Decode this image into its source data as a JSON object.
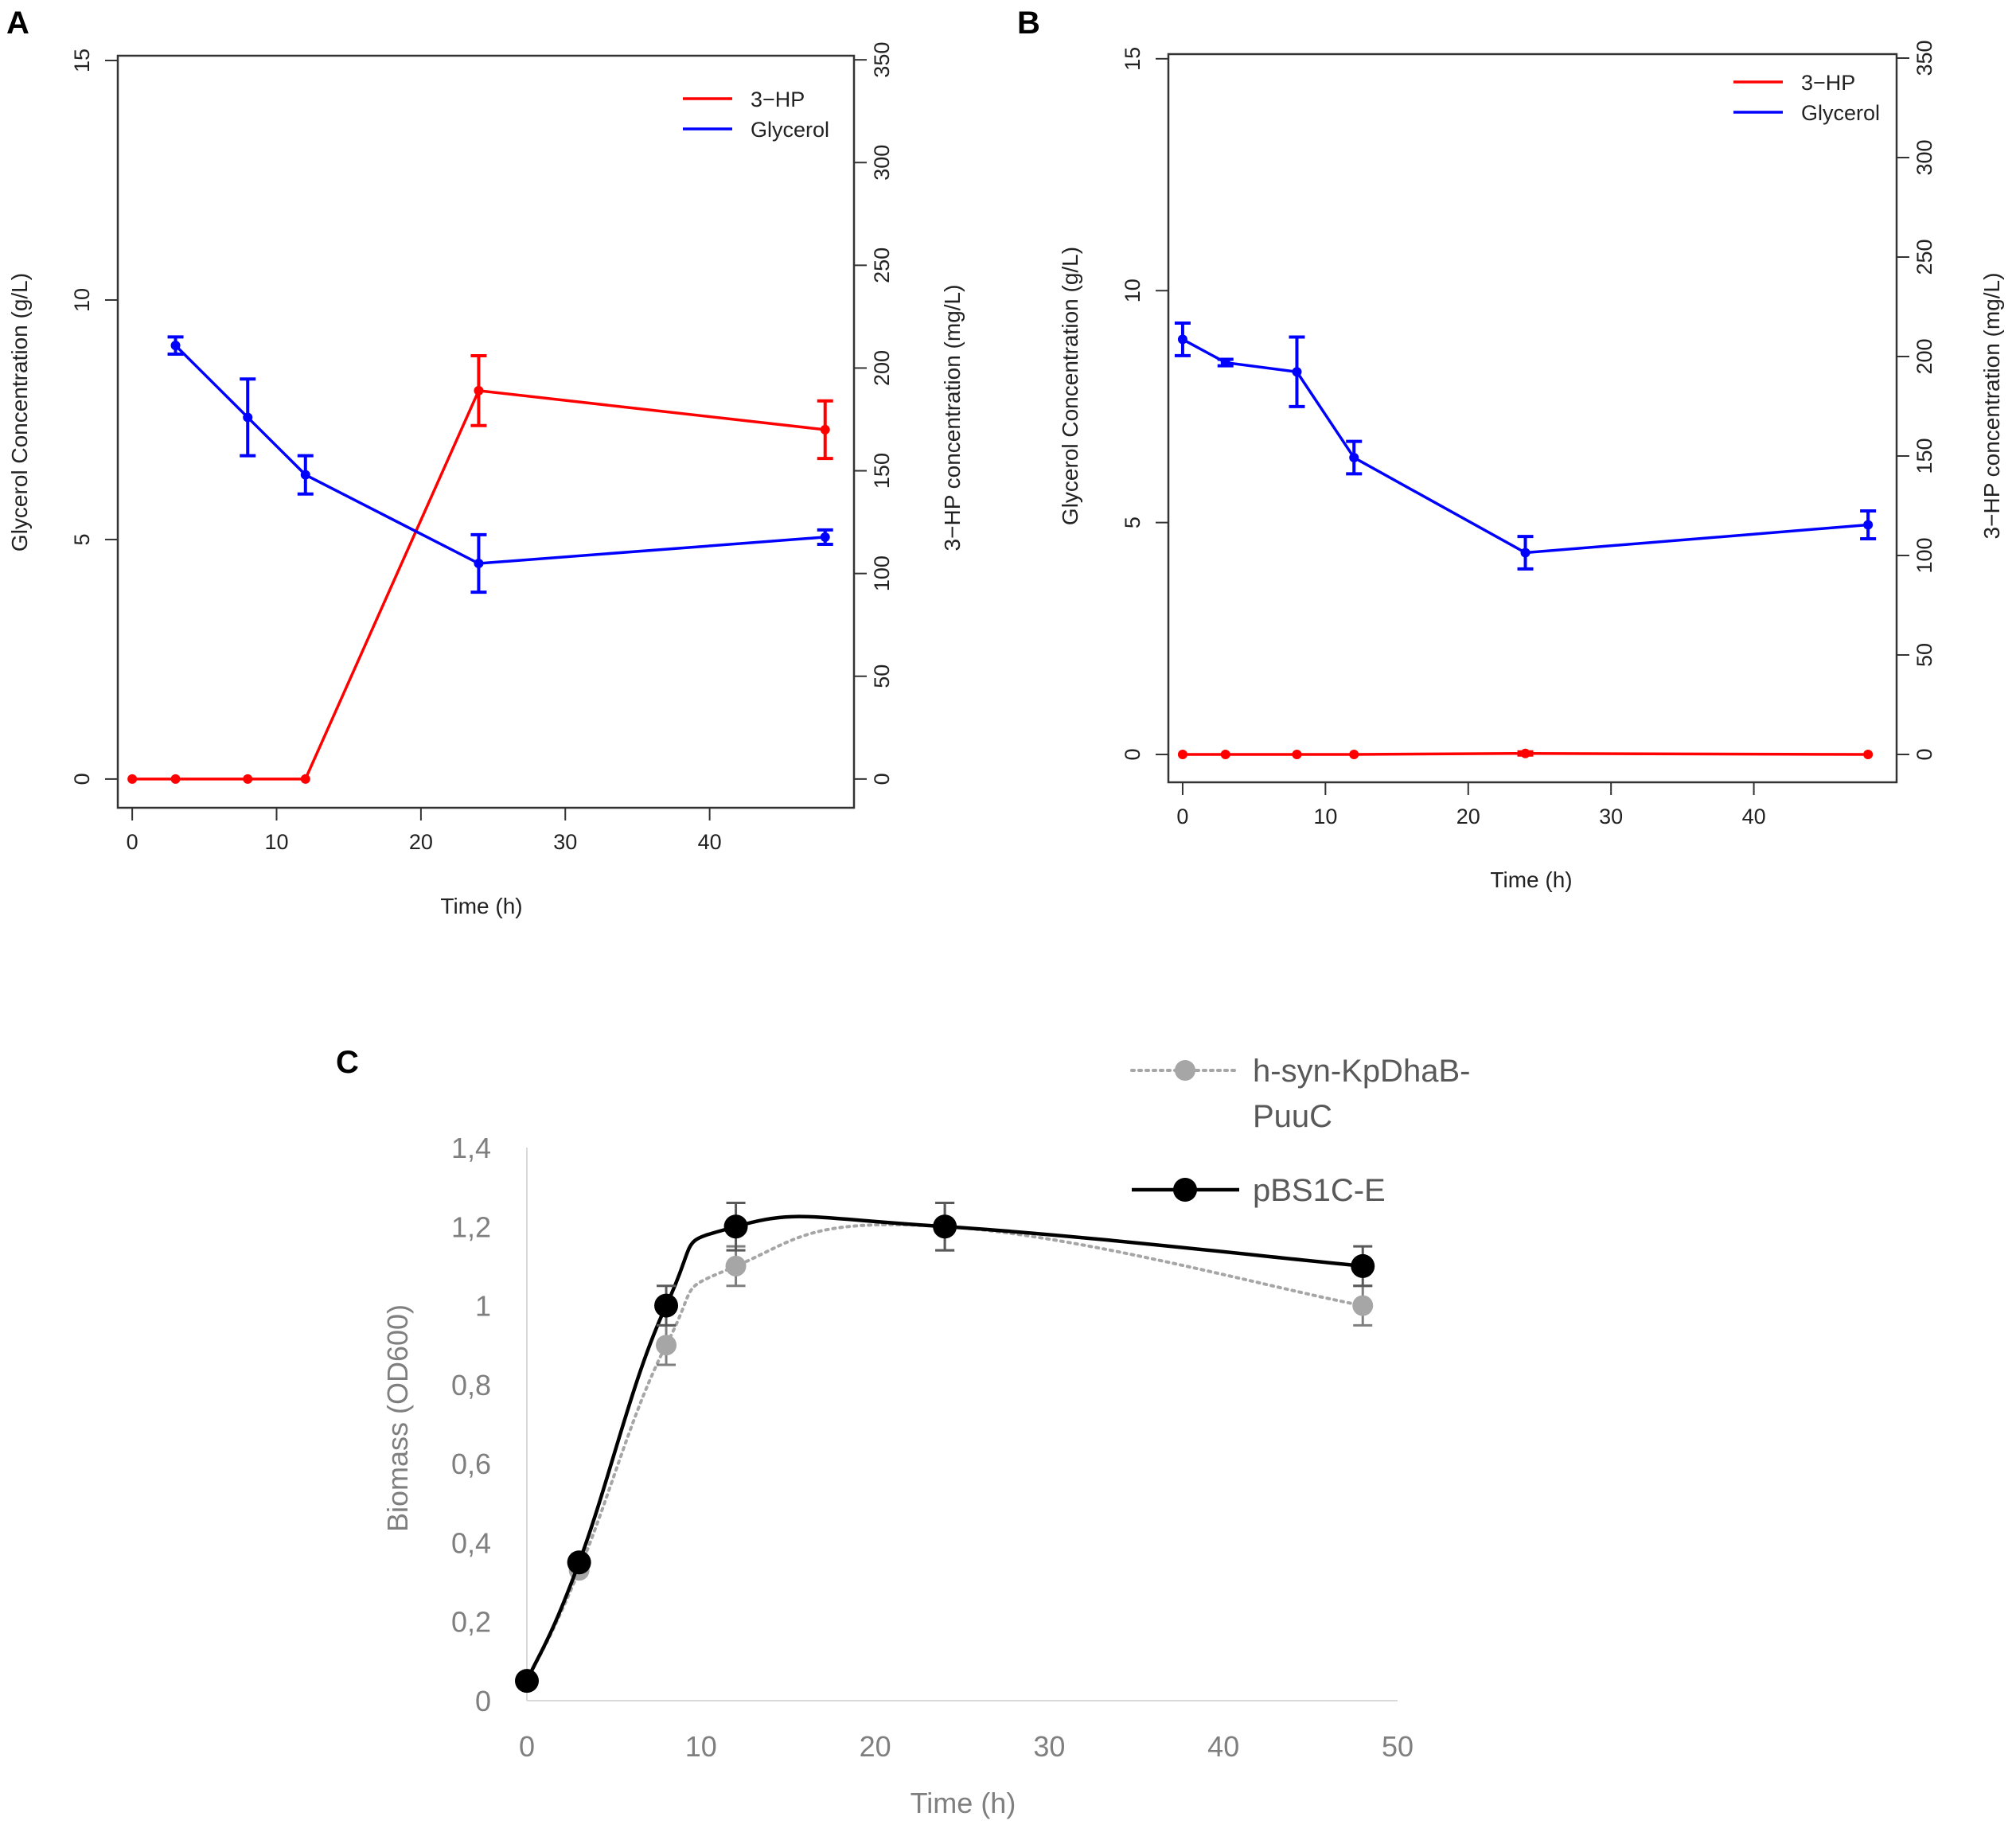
{
  "chart_data": [
    {
      "panel": "A",
      "type": "line",
      "x": [
        0,
        3,
        8,
        12,
        24,
        48
      ],
      "xlabel": "Time (h)",
      "ylabel": "Glycerol Concentration (g/L)",
      "y2label": "3−HP concentration (mg/L)",
      "xlim": [
        -1,
        50
      ],
      "xticks": [
        0,
        10,
        20,
        30,
        40
      ],
      "ylim": [
        -0.6,
        15.1
      ],
      "yticks": [
        0,
        5,
        10,
        15
      ],
      "y2lim": [
        -14,
        352
      ],
      "y2ticks": [
        0,
        50,
        100,
        150,
        200,
        250,
        300,
        350
      ],
      "legend_position": "top-right",
      "series": [
        {
          "name": "3−HP",
          "axis": "right",
          "color": "#ff0000",
          "x": [
            0,
            3,
            8,
            12,
            24,
            48
          ],
          "values": [
            0,
            0,
            0,
            0,
            189,
            170
          ],
          "err": [
            0,
            0,
            0,
            0,
            17,
            14
          ]
        },
        {
          "name": "Glycerol",
          "axis": "left",
          "color": "#0000ff",
          "x": [
            3,
            8,
            12,
            24,
            48
          ],
          "values": [
            9.05,
            7.55,
            6.35,
            4.5,
            5.05
          ],
          "err": [
            0.18,
            0.8,
            0.4,
            0.6,
            0.15
          ]
        }
      ]
    },
    {
      "panel": "B",
      "type": "line",
      "x": [
        0,
        3,
        8,
        12,
        24,
        48
      ],
      "xlabel": "Time (h)",
      "ylabel": "Glycerol Concentration (g/L)",
      "y2label": "3−HP concentration (mg/L)",
      "xlim": [
        -1,
        50
      ],
      "xticks": [
        0,
        10,
        20,
        30,
        40
      ],
      "ylim": [
        -0.6,
        15.1
      ],
      "yticks": [
        0,
        5,
        10,
        15
      ],
      "y2lim": [
        -14,
        352
      ],
      "y2ticks": [
        0,
        50,
        100,
        150,
        200,
        250,
        300,
        350
      ],
      "legend_position": "top-right",
      "series": [
        {
          "name": "3−HP",
          "axis": "right",
          "color": "#ff0000",
          "x": [
            0,
            3,
            8,
            12,
            24,
            48
          ],
          "values": [
            0,
            0,
            0,
            0,
            0.5,
            0
          ],
          "err": [
            0,
            0,
            0,
            0,
            0.8,
            0
          ]
        },
        {
          "name": "Glycerol",
          "axis": "left",
          "color": "#0000ff",
          "x": [
            0,
            3,
            8,
            12,
            24,
            48
          ],
          "values": [
            8.95,
            8.45,
            8.25,
            6.4,
            4.35,
            4.95
          ],
          "err": [
            0.35,
            0.07,
            0.75,
            0.35,
            0.35,
            0.3
          ]
        }
      ]
    },
    {
      "panel": "C",
      "type": "line",
      "xlabel": "Time (h)",
      "ylabel": "Biomass (OD600)",
      "xlim": [
        0,
        50
      ],
      "xticks": [
        0,
        10,
        20,
        30,
        40,
        50
      ],
      "ylim": [
        0,
        1.4
      ],
      "yticks": [
        0,
        0.2,
        0.4,
        0.6,
        0.8,
        1,
        1.2,
        1.4
      ],
      "ytick_labels": [
        "0",
        "0,2",
        "0,4",
        "0,6",
        "0,8",
        "1",
        "1,2",
        "1,4"
      ],
      "legend_position": "top-right",
      "series": [
        {
          "name": "h-syn-KpDhaB-PuuC",
          "legend_lines": [
            "h-syn-KpDhaB-",
            "PuuC"
          ],
          "style": "dotted",
          "color": "#a6a6a6",
          "x": [
            0,
            3,
            8,
            12,
            24,
            48
          ],
          "values": [
            0.05,
            0.33,
            0.9,
            1.1,
            1.2,
            1.0
          ],
          "err": [
            0,
            0,
            0.05,
            0.05,
            0.06,
            0.05
          ]
        },
        {
          "name": "pBS1C-E",
          "legend_lines": [
            "pBS1C-E"
          ],
          "style": "solid",
          "color": "#000000",
          "x": [
            0,
            3,
            8,
            12,
            24,
            48
          ],
          "values": [
            0.05,
            0.35,
            1.0,
            1.2,
            1.2,
            1.1
          ],
          "err": [
            0,
            0,
            0.05,
            0.06,
            0.06,
            0.05
          ]
        }
      ]
    }
  ]
}
